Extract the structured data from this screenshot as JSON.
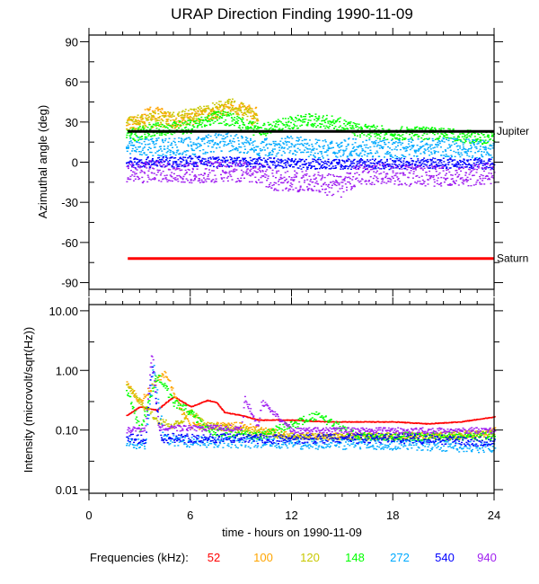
{
  "title": "URAP Direction Finding  1990-11-09",
  "xlabel": "time - hours on 1990-11-09",
  "legend_label": "Frequencies (kHz):",
  "chart_data": [
    {
      "type": "scatter",
      "title": "URAP Direction Finding  1990-11-09",
      "ylabel": "Azimuthal angle (deg)",
      "xlabel": "",
      "xlim": [
        0,
        24
      ],
      "ylim": [
        -95,
        95
      ],
      "xticks": [
        "0",
        "6",
        "12",
        "18",
        "24"
      ],
      "xtick_values": [
        0,
        6,
        12,
        18,
        24
      ],
      "yticks": [
        "90",
        "60",
        "30",
        "0",
        "-30",
        "-60",
        "-90"
      ],
      "ytick_values": [
        90,
        60,
        30,
        0,
        -30,
        -60,
        -90
      ],
      "reference_lines": [
        {
          "label": "Jupiter",
          "value": 23,
          "color": "#000000",
          "x_start": 2.3
        },
        {
          "label": "Saturn",
          "value": -72,
          "color": "#ff0000",
          "x_start": 2.3
        }
      ],
      "series": [
        {
          "name": "100",
          "color": "#ffa500",
          "spread": 5,
          "x": [
            2.2,
            3,
            3.5,
            4.5,
            5,
            6,
            7.5,
            8.5,
            9.5,
            10
          ],
          "y": [
            30,
            30,
            38,
            35,
            30,
            33,
            38,
            42,
            38,
            36
          ]
        },
        {
          "name": "120",
          "color": "#c8c800",
          "spread": 6,
          "x": [
            2.2,
            3,
            4,
            5,
            6,
            7,
            7.5,
            8.5,
            9.5,
            10
          ],
          "y": [
            28,
            30,
            33,
            32,
            35,
            38,
            40,
            42,
            36,
            30
          ]
        },
        {
          "name": "148",
          "color": "#00ff00",
          "spread": 5,
          "x": [
            2.2,
            4,
            6,
            7.5,
            8.5,
            10,
            12,
            13,
            14.5,
            16,
            18,
            20,
            22,
            24
          ],
          "y": [
            20,
            25,
            27,
            34,
            32,
            24,
            30,
            32,
            30,
            24,
            22,
            22,
            20,
            18
          ]
        },
        {
          "name": "272",
          "color": "#00aaff",
          "spread": 7,
          "x": [
            2.2,
            4,
            6,
            8,
            10,
            12,
            14,
            16,
            18,
            20,
            22,
            24
          ],
          "y": [
            12,
            12,
            12,
            16,
            11,
            13,
            10,
            12,
            10,
            12,
            11,
            10
          ]
        },
        {
          "name": "540",
          "color": "#0000ff",
          "spread": 4,
          "x": [
            2.2,
            6,
            10,
            14,
            18,
            22,
            24
          ],
          "y": [
            0,
            1,
            0,
            -1,
            -1,
            0,
            -1
          ]
        },
        {
          "name": "940",
          "color": "#a020f0",
          "spread": 8,
          "x": [
            2.2,
            4,
            6,
            8,
            10,
            11,
            13,
            15,
            16,
            18,
            20,
            22,
            24
          ],
          "y": [
            -8,
            -6,
            -8,
            -6,
            -7,
            -14,
            -14,
            -18,
            -8,
            -9,
            -10,
            -10,
            -8
          ]
        }
      ]
    },
    {
      "type": "scatter",
      "ylabel": "Intensity (microvolt/sqrt(Hz))",
      "xlabel": "time - hours on 1990-11-09",
      "xlim": [
        0,
        24
      ],
      "ylim": [
        0.0087,
        12.7
      ],
      "yscale": "log",
      "xticks": [
        "0",
        "6",
        "12",
        "18",
        "24"
      ],
      "xtick_values": [
        0,
        6,
        12,
        18,
        24
      ],
      "yticks": [
        "10.00",
        "1.00",
        "0.10",
        "0.01"
      ],
      "ytick_values": [
        10,
        1,
        0.1,
        0.01
      ],
      "series": [
        {
          "name": "52",
          "color": "#ff0000",
          "spread": 0.02,
          "x": [
            2.2,
            3,
            4,
            5,
            6,
            7,
            7.5,
            8,
            9,
            10,
            12,
            14,
            16,
            18,
            20,
            22,
            24
          ],
          "y": [
            0.18,
            0.25,
            0.22,
            0.37,
            0.25,
            0.32,
            0.3,
            0.2,
            0.18,
            0.15,
            0.15,
            0.14,
            0.14,
            0.14,
            0.13,
            0.14,
            0.17
          ]
        },
        {
          "name": "100",
          "color": "#ffa500",
          "spread": 0.06,
          "x": [
            2.2,
            3,
            4,
            4.5,
            5.5,
            6,
            9,
            12,
            18,
            22,
            24
          ],
          "y": [
            0.6,
            0.3,
            0.7,
            0.9,
            0.2,
            0.12,
            0.12,
            0.08,
            0.08,
            0.08,
            0.1
          ]
        },
        {
          "name": "120",
          "color": "#c8c800",
          "spread": 0.06,
          "x": [
            2.2,
            3,
            4,
            5,
            6,
            7,
            12,
            18,
            24
          ],
          "y": [
            0.6,
            0.3,
            0.15,
            0.12,
            0.2,
            0.12,
            0.08,
            0.08,
            0.09
          ]
        },
        {
          "name": "148",
          "color": "#00ff00",
          "spread": 0.07,
          "x": [
            2.2,
            3,
            4,
            5,
            6,
            7,
            10,
            13.5,
            14,
            16,
            24
          ],
          "y": [
            0.5,
            0.1,
            0.85,
            0.3,
            0.2,
            0.1,
            0.08,
            0.18,
            0.15,
            0.08,
            0.08
          ]
        },
        {
          "name": "272",
          "color": "#00aaff",
          "spread": 0.09,
          "x": [
            2.2,
            3.3,
            3.8,
            4.4,
            6,
            12,
            18,
            24
          ],
          "y": [
            0.06,
            0.06,
            1.1,
            0.07,
            0.065,
            0.06,
            0.058,
            0.052
          ]
        },
        {
          "name": "540",
          "color": "#0000ff",
          "spread": 0.08,
          "x": [
            2.2,
            3.3,
            3.7,
            4.2,
            6,
            12,
            18,
            24
          ],
          "y": [
            0.075,
            0.07,
            1.5,
            0.075,
            0.075,
            0.072,
            0.075,
            0.065
          ]
        },
        {
          "name": "940",
          "color": "#a020f0",
          "spread": 0.05,
          "x": [
            2.2,
            3.3,
            3.7,
            4.1,
            6,
            9,
            9.2,
            10,
            10.2,
            12,
            16,
            18,
            24
          ],
          "y": [
            0.1,
            0.11,
            2.2,
            0.11,
            0.11,
            0.11,
            0.35,
            0.11,
            0.3,
            0.1,
            0.1,
            0.1,
            0.1
          ]
        }
      ]
    }
  ]
}
